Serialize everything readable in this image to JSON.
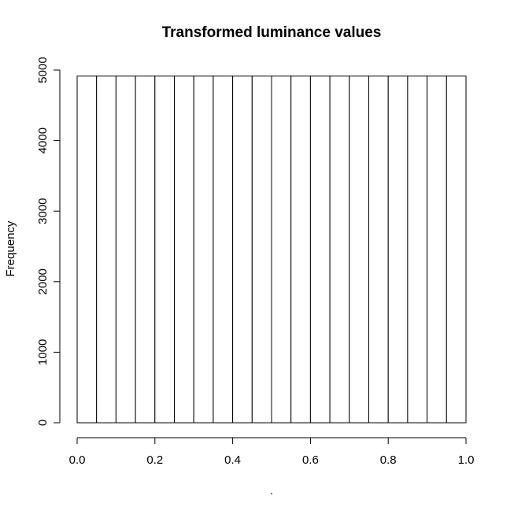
{
  "chart_data": {
    "type": "bar",
    "title": "Transformed luminance values",
    "xlabel": ".",
    "ylabel": "Frequency",
    "x": {
      "bin_edges": [
        0.0,
        0.05,
        0.1,
        0.15,
        0.2,
        0.25,
        0.3,
        0.35,
        0.4,
        0.45,
        0.5,
        0.55,
        0.6,
        0.65,
        0.7,
        0.75,
        0.8,
        0.85,
        0.9,
        0.95,
        1.0
      ],
      "ticks": [
        "0.0",
        "0.2",
        "0.4",
        "0.6",
        "0.8",
        "1.0"
      ],
      "range": [
        0,
        1
      ]
    },
    "y": {
      "ticks": [
        "0",
        "1000",
        "2000",
        "3000",
        "4000",
        "5000"
      ],
      "range": [
        0,
        5000
      ]
    },
    "values": [
      4915,
      4915,
      4915,
      4915,
      4915,
      4915,
      4915,
      4915,
      4915,
      4915,
      4915,
      4915,
      4915,
      4915,
      4915,
      4915,
      4915,
      4915,
      4915,
      4915
    ],
    "bar_fill": "#ffffff",
    "bar_stroke": "#000000",
    "grid": false
  }
}
